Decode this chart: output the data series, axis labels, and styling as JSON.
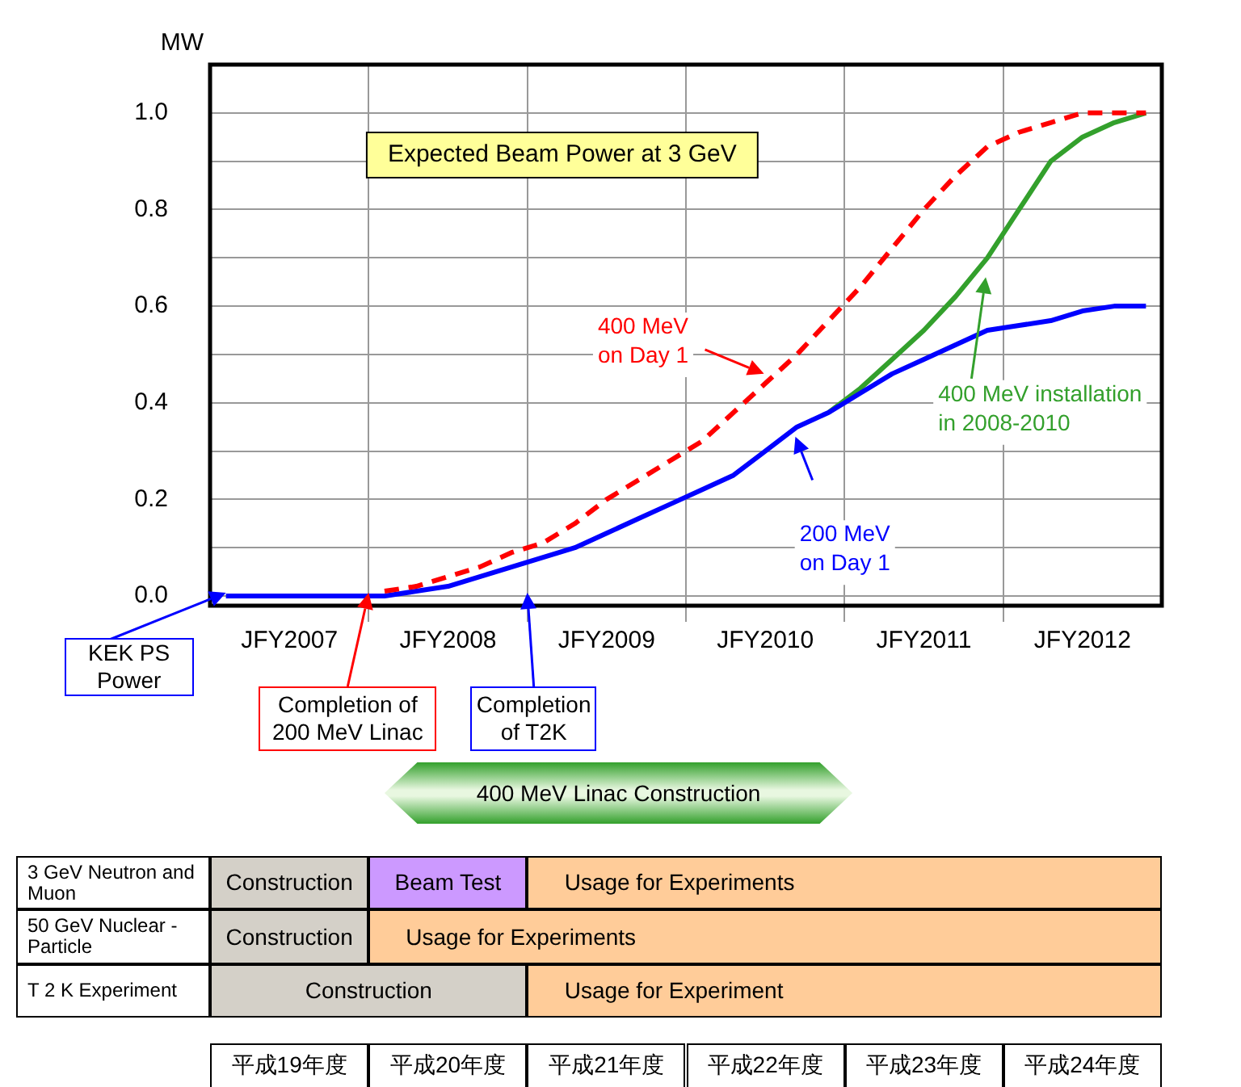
{
  "chart_data": {
    "type": "line",
    "title": "Expected Beam Power at 3 GeV",
    "ylabel": "MW",
    "categories": [
      null,
      null,
      "JFY2007",
      null,
      null,
      null,
      null,
      "JFY2008",
      null,
      null,
      null,
      null,
      "JFY2009",
      null,
      null,
      null,
      null,
      "JFY2010",
      null,
      null,
      null,
      null,
      "JFY2011",
      null,
      null,
      null,
      null,
      "JFY2012",
      null,
      null
    ],
    "ylim": [
      -0.02,
      1.1
    ],
    "yticks": [
      {
        "value": 0,
        "label": "0.0"
      },
      {
        "value": 0.1,
        "label": null
      },
      {
        "value": 0.2,
        "label": "0.2"
      },
      {
        "value": 0.3,
        "label": null
      },
      {
        "value": 0.4,
        "label": "0.4"
      },
      {
        "value": 0.5,
        "label": null
      },
      {
        "value": 0.6,
        "label": "0.6"
      },
      {
        "value": 0.7,
        "label": null
      },
      {
        "value": 0.8,
        "label": "0.8"
      },
      {
        "value": 0.9,
        "label": null
      },
      {
        "value": 1,
        "label": "1.0"
      }
    ],
    "grid": true,
    "legend": false,
    "marker": "none",
    "series": [
      {
        "name": "400 MeV\non Day 1",
        "color": "#ff0000",
        "line_style": "dashed",
        "values": [
          null,
          null,
          null,
          null,
          null,
          0.01,
          0.02,
          0.04,
          0.06,
          0.09,
          0.11,
          0.15,
          0.2,
          0.24,
          0.28,
          0.32,
          0.38,
          0.44,
          0.5,
          0.57,
          0.64,
          0.72,
          0.8,
          0.87,
          0.93,
          0.96,
          0.98,
          1.0,
          1.0,
          1.0
        ]
      },
      {
        "name": "200 MeV\non Day 1",
        "color": "#0000ff",
        "line_style": "solid",
        "values": [
          0,
          0,
          0,
          0,
          0,
          0,
          0.01,
          0.02,
          0.04,
          0.06,
          0.08,
          0.1,
          0.13,
          0.16,
          0.19,
          0.22,
          0.25,
          0.3,
          0.35,
          0.38,
          0.42,
          0.46,
          0.49,
          0.52,
          0.55,
          0.56,
          0.57,
          0.59,
          0.6,
          0.6
        ]
      },
      {
        "name": "400 MeV installation\nin 2008-2010",
        "color": "#33a02c",
        "line_style": "solid",
        "values": [
          null,
          null,
          null,
          null,
          null,
          null,
          null,
          null,
          null,
          null,
          null,
          null,
          null,
          null,
          null,
          null,
          null,
          null,
          null,
          0.38,
          0.43,
          0.49,
          0.55,
          0.62,
          0.7,
          0.8,
          0.9,
          0.95,
          0.98,
          1.0
        ]
      }
    ],
    "annotations": [
      "KEK PS Power",
      "Completion of 200 MeV Linac",
      "Completion of T2K",
      "400 MeV Linac Construction",
      "3 GeV Neutron and Muon",
      "Construction",
      "Beam Test",
      "Usage for Experiments",
      "50 GeV Nuclear - Particle",
      "Construction",
      "Usage for Experiments",
      "T 2 K Experiment",
      "Construction",
      "Usage for Experiment",
      "平成19年度",
      "平成20年度",
      "平成21年度",
      "平成22年度",
      "平成23年度",
      "平成24年度"
    ]
  }
}
